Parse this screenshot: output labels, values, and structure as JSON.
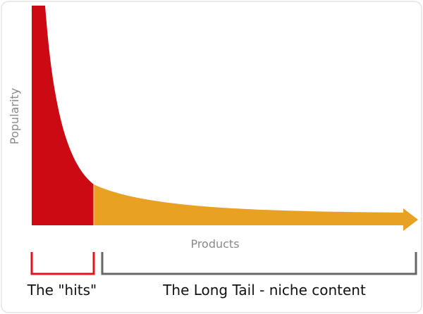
{
  "axes": {
    "y_label": "Popularity",
    "x_label": "Products"
  },
  "segments": [
    {
      "label": "The \"hits\""
    },
    {
      "label": "The Long Tail - niche content"
    }
  ]
}
